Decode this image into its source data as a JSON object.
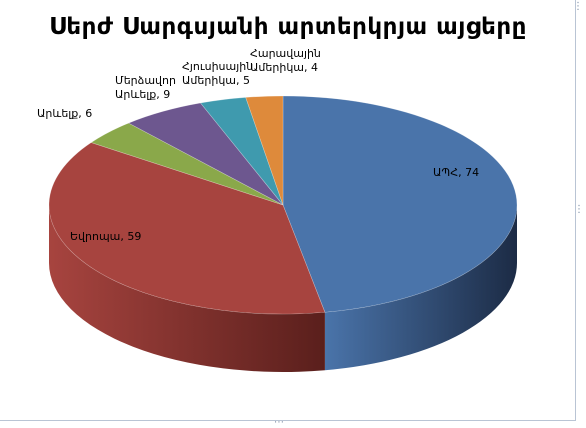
{
  "chart_data": {
    "type": "pie",
    "title": "Սերժ Սարգսյանի արտերկրյա այցերը",
    "three_d": true,
    "legend": "none",
    "slices": [
      {
        "label": "ԱՊՀ",
        "value": 74,
        "color": "#4a74aa",
        "side": "#1c2b45",
        "label_lines": [
          "ԱՊՀ, 74"
        ]
      },
      {
        "label": "Եվրոպա",
        "value": 59,
        "color": "#a7443f",
        "side": "#5a1f1c",
        "label_lines": [
          "Եվրոպա, 59"
        ]
      },
      {
        "label": "Արևելք",
        "value": 6,
        "color": "#8aa84a",
        "side": "#4a5c22",
        "label_lines": [
          "Արևելք, 6"
        ]
      },
      {
        "label": "Մերձավոր Արևելք",
        "value": 9,
        "color": "#6d578f",
        "side": "#3a2d4e",
        "label_lines": [
          "Մերձավոր",
          "Արևելք, 9"
        ]
      },
      {
        "label": "Հյուսիսային Ամերիկա",
        "value": 5,
        "color": "#3f9aae",
        "side": "#1e5560",
        "label_lines": [
          "Հյուսիսային",
          "Ամերիկա, 5"
        ]
      },
      {
        "label": "Հարավային Ամերիկա",
        "value": 4,
        "color": "#de8a3b",
        "side": "#7a4418",
        "label_lines": [
          "Հարավային",
          "Ամերիկա, 4"
        ]
      }
    ]
  }
}
